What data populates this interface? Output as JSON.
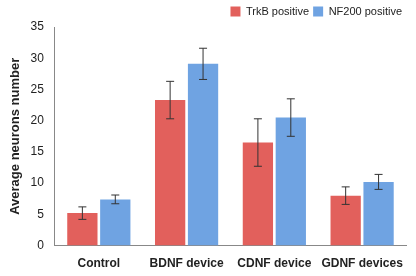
{
  "chart_data": {
    "type": "bar",
    "y_label": "Average neurons number",
    "categories": [
      "Control",
      "BDNF device",
      "CDNF device",
      "GDNF devices"
    ],
    "series": [
      {
        "name": "TrkB positive",
        "color": "#e2605c",
        "values": [
          5.2,
          23.3,
          16.5,
          8.0
        ],
        "errors": [
          1.0,
          3.0,
          3.8,
          1.4
        ]
      },
      {
        "name": "NF200 positive",
        "color": "#6fa3e2",
        "values": [
          7.4,
          29.1,
          20.5,
          10.2
        ],
        "errors": [
          0.7,
          2.5,
          3.0,
          1.2
        ]
      }
    ],
    "ylim": [
      0,
      35
    ],
    "yticks": [
      0,
      5,
      10,
      15,
      20,
      25,
      30,
      35
    ],
    "grid": false,
    "legend": "upper right"
  }
}
